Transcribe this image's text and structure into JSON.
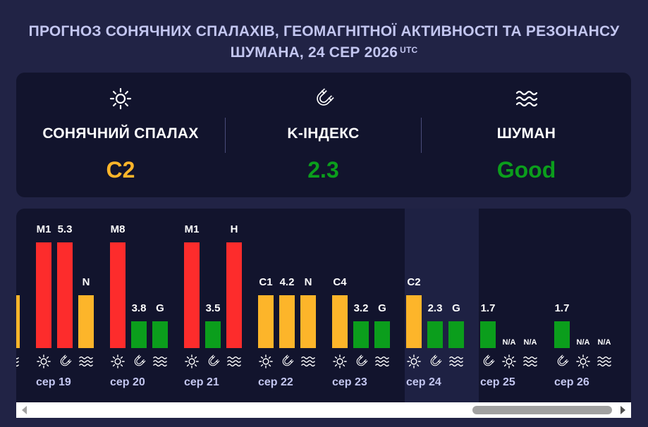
{
  "header": {
    "title": "ПРОГНОЗ СОНЯЧНИХ СПАЛАХІВ, ГЕОМАГНІТНОЇ АКТИВНОСТІ ТА РЕЗОНАНСУ ШУМАНА, 24 СЕР 2026",
    "tz": "UTC"
  },
  "summary": [
    {
      "icon": "sun-icon",
      "label": "СОНЯЧНИЙ СПАЛАХ",
      "value": "C2",
      "color": "#fdb52a"
    },
    {
      "icon": "magnet-icon",
      "label": "K-ІНДЕКС",
      "value": "2.3",
      "color": "#0b9e1c"
    },
    {
      "icon": "waves-icon",
      "label": "ШУМАН",
      "value": "Good",
      "color": "#0b9e1c"
    }
  ],
  "colors": {
    "red": "#fd2c2c",
    "yellow": "#fdb52a",
    "green": "#0b9e1c"
  },
  "chart_data": {
    "type": "bar",
    "days": [
      {
        "date": "",
        "partial": true,
        "bars": [
          {
            "label": "",
            "level": 0.5,
            "color": "yellow",
            "icon": "waves-icon"
          }
        ]
      },
      {
        "date": "сер 19",
        "bars": [
          {
            "label": "M1",
            "level": 1.0,
            "color": "red",
            "icon": "sun-icon"
          },
          {
            "label": "5.3",
            "level": 1.0,
            "color": "red",
            "icon": "magnet-icon"
          },
          {
            "label": "N",
            "level": 0.5,
            "color": "yellow",
            "icon": "waves-icon"
          }
        ]
      },
      {
        "date": "сер 20",
        "bars": [
          {
            "label": "M8",
            "level": 1.0,
            "color": "red",
            "icon": "sun-icon"
          },
          {
            "label": "3.8",
            "level": 0.25,
            "color": "green",
            "icon": "magnet-icon"
          },
          {
            "label": "G",
            "level": 0.25,
            "color": "green",
            "icon": "waves-icon"
          }
        ]
      },
      {
        "date": "сер 21",
        "bars": [
          {
            "label": "M1",
            "level": 1.0,
            "color": "red",
            "icon": "sun-icon"
          },
          {
            "label": "3.5",
            "level": 0.25,
            "color": "green",
            "icon": "magnet-icon"
          },
          {
            "label": "H",
            "level": 1.0,
            "color": "red",
            "icon": "waves-icon"
          }
        ]
      },
      {
        "date": "сер 22",
        "bars": [
          {
            "label": "C1",
            "level": 0.5,
            "color": "yellow",
            "icon": "sun-icon"
          },
          {
            "label": "4.2",
            "level": 0.5,
            "color": "yellow",
            "icon": "magnet-icon"
          },
          {
            "label": "N",
            "level": 0.5,
            "color": "yellow",
            "icon": "waves-icon"
          }
        ]
      },
      {
        "date": "сер 23",
        "bars": [
          {
            "label": "C4",
            "level": 0.5,
            "color": "yellow",
            "icon": "sun-icon"
          },
          {
            "label": "3.2",
            "level": 0.25,
            "color": "green",
            "icon": "magnet-icon"
          },
          {
            "label": "G",
            "level": 0.25,
            "color": "green",
            "icon": "waves-icon"
          }
        ]
      },
      {
        "date": "сер 24",
        "today": true,
        "bars": [
          {
            "label": "C2",
            "level": 0.5,
            "color": "yellow",
            "icon": "sun-icon"
          },
          {
            "label": "2.3",
            "level": 0.25,
            "color": "green",
            "icon": "magnet-icon"
          },
          {
            "label": "G",
            "level": 0.25,
            "color": "green",
            "icon": "waves-icon"
          }
        ]
      },
      {
        "date": "сер 25",
        "bars": [
          {
            "label": "1.7",
            "level": 0.25,
            "color": "green",
            "icon": "magnet-icon"
          },
          {
            "label": "N/A",
            "level": 0,
            "color": "none",
            "icon": "sun-icon"
          },
          {
            "label": "N/A",
            "level": 0,
            "color": "none",
            "icon": "waves-icon"
          }
        ]
      },
      {
        "date": "сер 26",
        "bars": [
          {
            "label": "1.7",
            "level": 0.25,
            "color": "green",
            "icon": "magnet-icon"
          },
          {
            "label": "N/A",
            "level": 0,
            "color": "none",
            "icon": "sun-icon"
          },
          {
            "label": "N/A",
            "level": 0,
            "color": "none",
            "icon": "waves-icon"
          }
        ]
      }
    ]
  }
}
